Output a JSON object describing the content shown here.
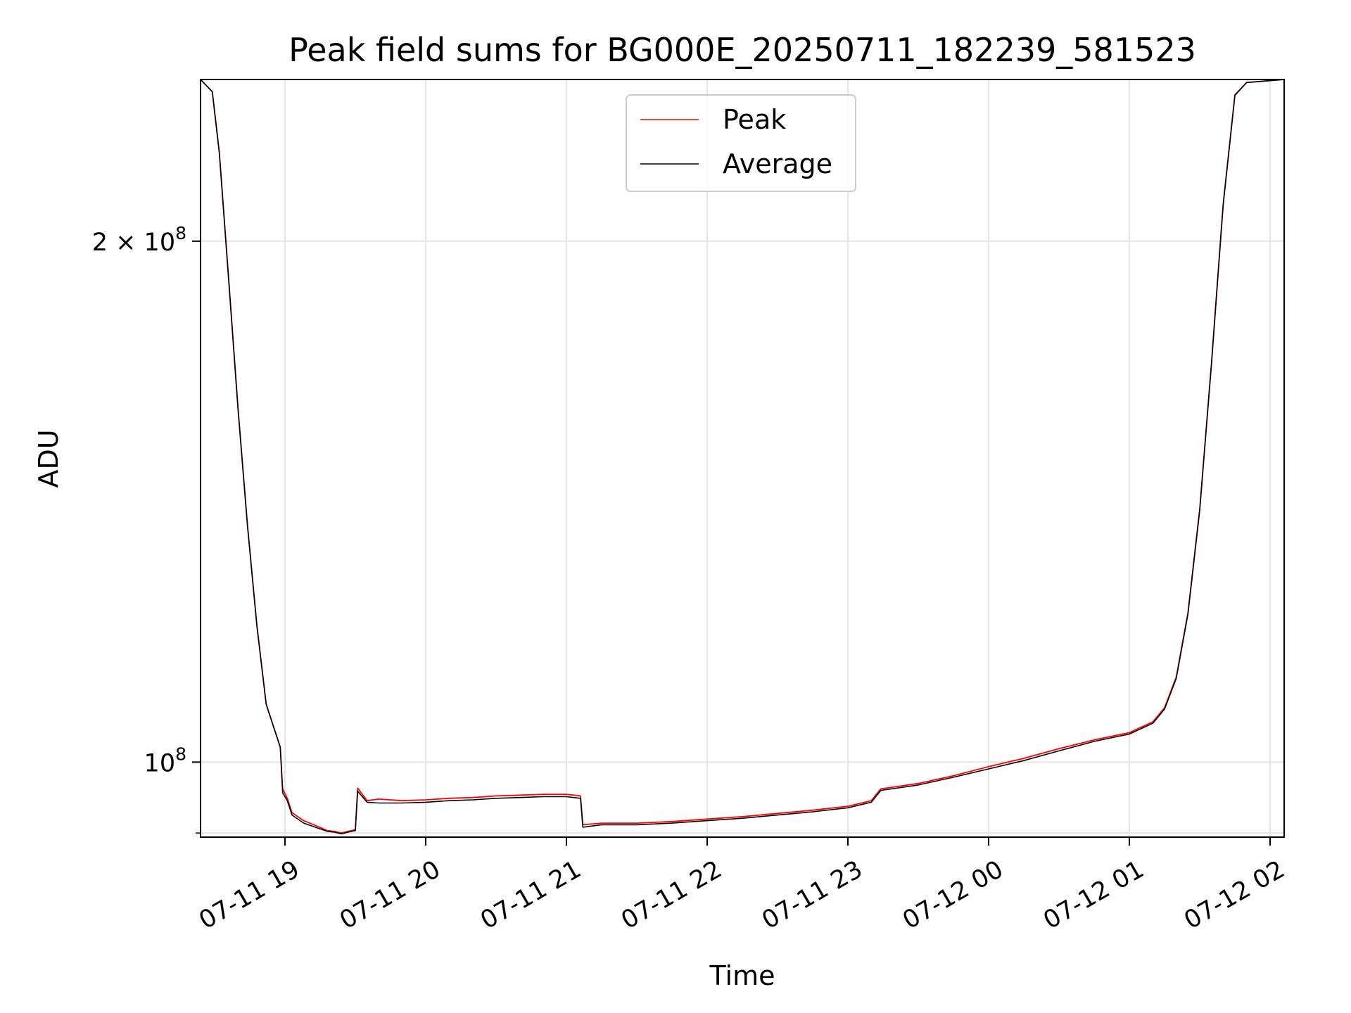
{
  "chart_data": {
    "type": "line",
    "title": "Peak field sums for BG000E_20250711_182239_581523",
    "xlabel": "Time",
    "ylabel": "ADU",
    "yscale": "log",
    "xlim": [
      "2025-07-11 18:24",
      "2025-07-12 02:06"
    ],
    "ylim": [
      90500000,
      248000000
    ],
    "grid": true,
    "legend_position": "upper center",
    "x_ticks": [
      {
        "t": "2025-07-11 19:00",
        "label": "07-11 19"
      },
      {
        "t": "2025-07-11 20:00",
        "label": "07-11 20"
      },
      {
        "t": "2025-07-11 21:00",
        "label": "07-11 21"
      },
      {
        "t": "2025-07-11 22:00",
        "label": "07-11 22"
      },
      {
        "t": "2025-07-11 23:00",
        "label": "07-11 23"
      },
      {
        "t": "2025-07-12 00:00",
        "label": "07-12 00"
      },
      {
        "t": "2025-07-12 01:00",
        "label": "07-12 01"
      },
      {
        "t": "2025-07-12 02:00",
        "label": "07-12 02"
      }
    ],
    "y_ticks": [
      {
        "value": 100000000,
        "base": "10",
        "exp": "8",
        "mult": ""
      },
      {
        "value": 200000000,
        "base": "10",
        "exp": "8",
        "mult": "2 × "
      }
    ],
    "series": [
      {
        "name": "Peak",
        "color": "#ff0000",
        "points": [
          [
            "2025-07-11 18:24",
            248000000
          ],
          [
            "2025-07-11 18:29",
            244000000
          ],
          [
            "2025-07-11 18:32",
            225000000
          ],
          [
            "2025-07-11 18:36",
            190000000
          ],
          [
            "2025-07-11 18:40",
            160000000
          ],
          [
            "2025-07-11 18:44",
            137000000
          ],
          [
            "2025-07-11 18:48",
            120000000
          ],
          [
            "2025-07-11 18:52",
            108000000
          ],
          [
            "2025-07-11 18:58",
            102000000
          ],
          [
            "2025-07-11 18:59",
            96500000
          ],
          [
            "2025-07-11 19:01",
            95300000
          ],
          [
            "2025-07-11 19:03",
            93500000
          ],
          [
            "2025-07-11 19:08",
            92500000
          ],
          [
            "2025-07-11 19:14",
            91800000
          ],
          [
            "2025-07-11 19:18",
            91300000
          ],
          [
            "2025-07-11 19:21",
            91200000
          ],
          [
            "2025-07-11 19:24",
            91000000
          ],
          [
            "2025-07-11 19:27",
            91200000
          ],
          [
            "2025-07-11 19:30",
            91400000
          ],
          [
            "2025-07-11 19:31",
            96600000
          ],
          [
            "2025-07-11 19:35",
            95000000
          ],
          [
            "2025-07-11 19:40",
            95200000
          ],
          [
            "2025-07-11 19:50",
            95000000
          ],
          [
            "2025-07-11 20:00",
            95100000
          ],
          [
            "2025-07-11 20:10",
            95300000
          ],
          [
            "2025-07-11 20:20",
            95400000
          ],
          [
            "2025-07-11 20:30",
            95600000
          ],
          [
            "2025-07-11 20:40",
            95700000
          ],
          [
            "2025-07-11 20:50",
            95800000
          ],
          [
            "2025-07-11 21:00",
            95800000
          ],
          [
            "2025-07-11 21:06",
            95600000
          ],
          [
            "2025-07-11 21:07",
            92000000
          ],
          [
            "2025-07-11 21:15",
            92200000
          ],
          [
            "2025-07-11 21:30",
            92200000
          ],
          [
            "2025-07-11 21:45",
            92400000
          ],
          [
            "2025-07-11 22:00",
            92700000
          ],
          [
            "2025-07-11 22:15",
            93000000
          ],
          [
            "2025-07-11 22:30",
            93400000
          ],
          [
            "2025-07-11 22:45",
            93800000
          ],
          [
            "2025-07-11 23:00",
            94300000
          ],
          [
            "2025-07-11 23:10",
            95000000
          ],
          [
            "2025-07-11 23:14",
            96500000
          ],
          [
            "2025-07-11 23:30",
            97200000
          ],
          [
            "2025-07-11 23:45",
            98200000
          ],
          [
            "2025-07-12 00:00",
            99400000
          ],
          [
            "2025-07-12 00:15",
            100500000
          ],
          [
            "2025-07-12 00:30",
            101800000
          ],
          [
            "2025-07-12 00:45",
            103000000
          ],
          [
            "2025-07-12 01:00",
            104000000
          ],
          [
            "2025-07-12 01:10",
            105500000
          ],
          [
            "2025-07-12 01:15",
            107500000
          ],
          [
            "2025-07-12 01:20",
            112000000
          ],
          [
            "2025-07-12 01:25",
            122000000
          ],
          [
            "2025-07-12 01:30",
            140000000
          ],
          [
            "2025-07-12 01:35",
            170000000
          ],
          [
            "2025-07-12 01:40",
            210000000
          ],
          [
            "2025-07-12 01:45",
            243000000
          ],
          [
            "2025-07-12 01:50",
            247000000
          ],
          [
            "2025-07-12 02:06",
            248000000
          ]
        ]
      },
      {
        "name": "Average",
        "color": "#000000",
        "points": [
          [
            "2025-07-11 18:24",
            248000000
          ],
          [
            "2025-07-11 18:29",
            244000000
          ],
          [
            "2025-07-11 18:32",
            225000000
          ],
          [
            "2025-07-11 18:36",
            190000000
          ],
          [
            "2025-07-11 18:40",
            160000000
          ],
          [
            "2025-07-11 18:44",
            137000000
          ],
          [
            "2025-07-11 18:48",
            120000000
          ],
          [
            "2025-07-11 18:52",
            108000000
          ],
          [
            "2025-07-11 18:58",
            102000000
          ],
          [
            "2025-07-11 18:59",
            96000000
          ],
          [
            "2025-07-11 19:01",
            95000000
          ],
          [
            "2025-07-11 19:03",
            93200000
          ],
          [
            "2025-07-11 19:08",
            92200000
          ],
          [
            "2025-07-11 19:14",
            91600000
          ],
          [
            "2025-07-11 19:18",
            91200000
          ],
          [
            "2025-07-11 19:21",
            91100000
          ],
          [
            "2025-07-11 19:24",
            90900000
          ],
          [
            "2025-07-11 19:27",
            91100000
          ],
          [
            "2025-07-11 19:30",
            91300000
          ],
          [
            "2025-07-11 19:31",
            96200000
          ],
          [
            "2025-07-11 19:35",
            94800000
          ],
          [
            "2025-07-11 19:40",
            94700000
          ],
          [
            "2025-07-11 19:50",
            94700000
          ],
          [
            "2025-07-11 20:00",
            94800000
          ],
          [
            "2025-07-11 20:10",
            95000000
          ],
          [
            "2025-07-11 20:20",
            95100000
          ],
          [
            "2025-07-11 20:30",
            95300000
          ],
          [
            "2025-07-11 20:40",
            95400000
          ],
          [
            "2025-07-11 20:50",
            95500000
          ],
          [
            "2025-07-11 21:00",
            95500000
          ],
          [
            "2025-07-11 21:06",
            95300000
          ],
          [
            "2025-07-11 21:07",
            91700000
          ],
          [
            "2025-07-11 21:15",
            92000000
          ],
          [
            "2025-07-11 21:30",
            92000000
          ],
          [
            "2025-07-11 21:45",
            92200000
          ],
          [
            "2025-07-11 22:00",
            92500000
          ],
          [
            "2025-07-11 22:15",
            92800000
          ],
          [
            "2025-07-11 22:30",
            93200000
          ],
          [
            "2025-07-11 22:45",
            93600000
          ],
          [
            "2025-07-11 23:00",
            94100000
          ],
          [
            "2025-07-11 23:10",
            94800000
          ],
          [
            "2025-07-11 23:14",
            96300000
          ],
          [
            "2025-07-11 23:30",
            97000000
          ],
          [
            "2025-07-11 23:45",
            98000000
          ],
          [
            "2025-07-12 00:00",
            99100000
          ],
          [
            "2025-07-12 00:15",
            100200000
          ],
          [
            "2025-07-12 00:30",
            101500000
          ],
          [
            "2025-07-12 00:45",
            102800000
          ],
          [
            "2025-07-12 01:00",
            103800000
          ],
          [
            "2025-07-12 01:10",
            105300000
          ],
          [
            "2025-07-12 01:15",
            107300000
          ],
          [
            "2025-07-12 01:20",
            111800000
          ],
          [
            "2025-07-12 01:25",
            121800000
          ],
          [
            "2025-07-12 01:30",
            139800000
          ],
          [
            "2025-07-12 01:35",
            169800000
          ],
          [
            "2025-07-12 01:40",
            209800000
          ],
          [
            "2025-07-12 01:45",
            242800000
          ],
          [
            "2025-07-12 01:50",
            247000000
          ],
          [
            "2025-07-12 02:06",
            248000000
          ]
        ]
      }
    ]
  }
}
